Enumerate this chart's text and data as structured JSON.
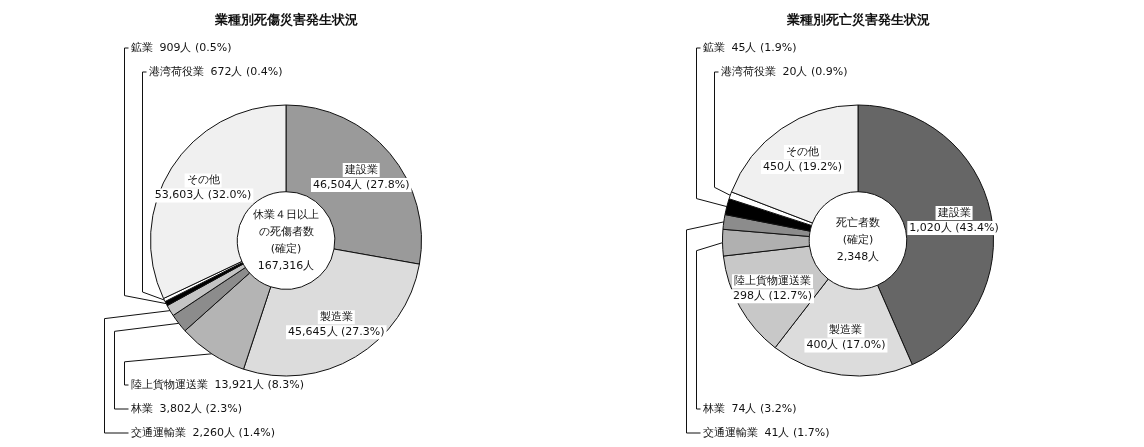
{
  "chart_data": [
    {
      "type": "donut",
      "title": "業種別死傷災害発生状況",
      "categories": [
        "建設業",
        "製造業",
        "陸上貨物運送業",
        "林業",
        "交通運輸業",
        "鉱業",
        "港湾荷役業",
        "その他"
      ],
      "values": [
        46504,
        45645,
        13921,
        3802,
        2260,
        909,
        672,
        53603
      ],
      "value_labels": [
        "46,504人 (27.8%)",
        "45,645人 (27.3%)",
        "13,921人 (8.3%)",
        "3,802人 (2.3%)",
        "2,260人 (1.4%)",
        "909人 (0.5%)",
        "672人 (0.4%)",
        "53,603人 (32.0%)"
      ],
      "colors": [
        "#9a9a9a",
        "#dcdcdc",
        "#b4b4b4",
        "#8c8c8c",
        "#c4c4c4",
        "#000000",
        "#ffffff",
        "#f0f0f0"
      ],
      "annotations": [
        "休業４日以上",
        "の死傷者数",
        "(確定)",
        "167,316人"
      ]
    },
    {
      "type": "donut",
      "title": "業種別死亡災害発生状況",
      "categories": [
        "建設業",
        "製造業",
        "陸上貨物運送業",
        "林業",
        "交通運輸業",
        "鉱業",
        "港湾荷役業",
        "その他"
      ],
      "values": [
        1020,
        400,
        298,
        74,
        41,
        45,
        20,
        450
      ],
      "value_labels": [
        "1,020人 (43.4%)",
        "400人 (17.0%)",
        "298人 (12.7%)",
        "74人 (3.2%)",
        "41人 (1.7%)",
        "45人 (1.9%)",
        "20人 (0.9%)",
        "450人 (19.2%)"
      ],
      "colors": [
        "#666666",
        "#dcdcdc",
        "#c8c8c8",
        "#b0b0b0",
        "#8c8c8c",
        "#000000",
        "#ffffff",
        "#f0f0f0"
      ],
      "annotations": [
        "死亡者数",
        "(確定)",
        "2,348人"
      ]
    }
  ]
}
